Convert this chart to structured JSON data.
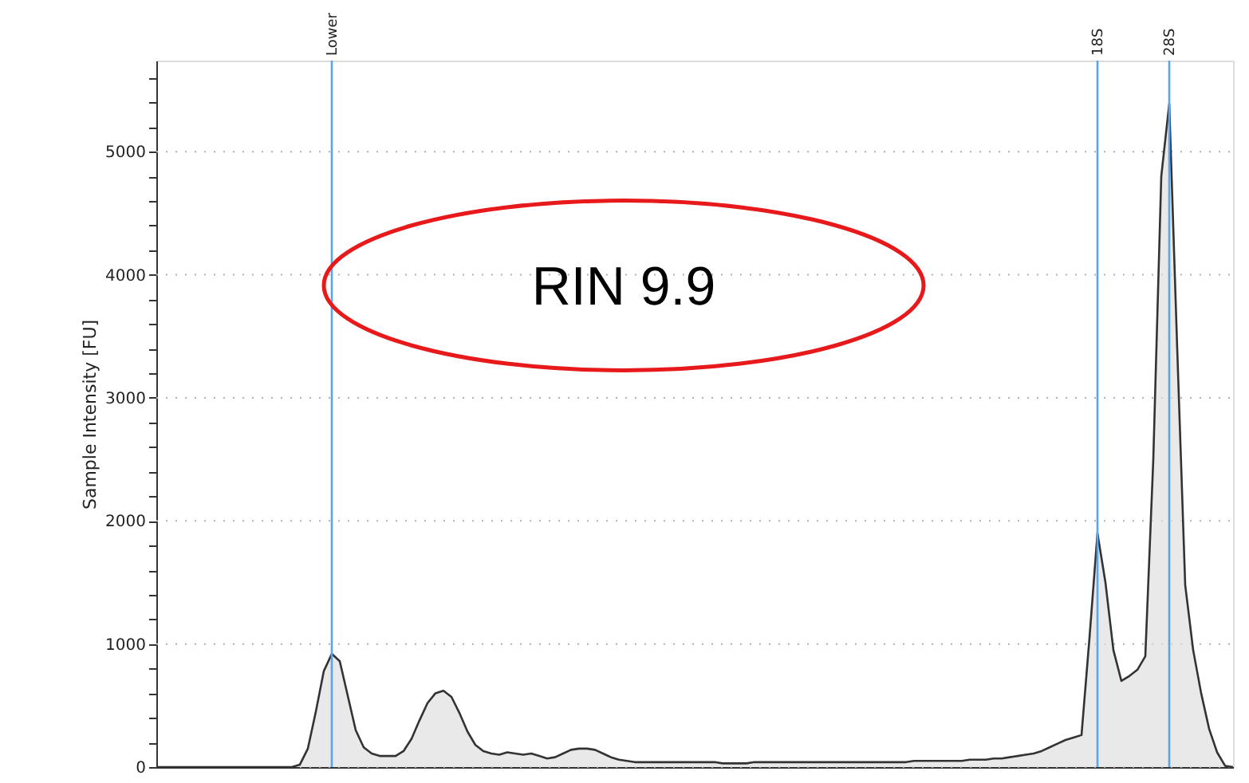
{
  "chart_data": {
    "type": "area",
    "ylabel": "Sample Intensity [FU]",
    "categories": [
      null,
      null,
      null,
      null,
      null,
      null,
      null,
      null,
      null,
      null,
      null,
      null,
      null,
      null,
      null,
      null,
      null,
      null,
      null,
      null,
      null,
      null,
      "Lower",
      null,
      null,
      null,
      null,
      null,
      null,
      null,
      null,
      null,
      null,
      null,
      null,
      null,
      null,
      null,
      null,
      null,
      null,
      null,
      null,
      null,
      null,
      null,
      null,
      null,
      null,
      null,
      null,
      null,
      null,
      null,
      null,
      null,
      null,
      null,
      null,
      null,
      null,
      null,
      null,
      null,
      null,
      null,
      null,
      null,
      null,
      null,
      null,
      null,
      null,
      null,
      null,
      null,
      null,
      null,
      null,
      null,
      null,
      null,
      null,
      null,
      null,
      null,
      null,
      null,
      null,
      null,
      null,
      null,
      null,
      null,
      null,
      null,
      null,
      null,
      null,
      null,
      null,
      null,
      null,
      null,
      null,
      null,
      null,
      null,
      null,
      null,
      null,
      null,
      null,
      null,
      null,
      null,
      null,
      null,
      "18S",
      null,
      null,
      null,
      null,
      null,
      null,
      null,
      null,
      "28S",
      null,
      null,
      null,
      null,
      null,
      null,
      null,
      null
    ],
    "series": [
      {
        "color": "#e0e0e0",
        "values": [
          0,
          0,
          0,
          0,
          0,
          0,
          0,
          0,
          0,
          0,
          0,
          0,
          0,
          0,
          0,
          0,
          0,
          0,
          20,
          150,
          450,
          780,
          920,
          860,
          580,
          300,
          160,
          110,
          90,
          90,
          90,
          130,
          230,
          380,
          520,
          600,
          620,
          570,
          440,
          290,
          180,
          130,
          110,
          100,
          120,
          110,
          100,
          110,
          90,
          70,
          80,
          110,
          140,
          150,
          150,
          140,
          110,
          80,
          60,
          50,
          40,
          40,
          40,
          40,
          40,
          40,
          40,
          40,
          40,
          40,
          40,
          30,
          30,
          30,
          30,
          40,
          40,
          40,
          40,
          40,
          40,
          40,
          40,
          40,
          40,
          40,
          40,
          40,
          40,
          40,
          40,
          40,
          40,
          40,
          40,
          50,
          50,
          50,
          50,
          50,
          50,
          50,
          60,
          60,
          60,
          70,
          70,
          80,
          90,
          100,
          110,
          130,
          160,
          190,
          220,
          240,
          260,
          1050,
          1900,
          1500,
          950,
          700,
          740,
          790,
          900,
          2500,
          4800,
          5390,
          3400,
          1480,
          950,
          600,
          310,
          120,
          10,
          0
        ]
      }
    ],
    "ylim": [
      0,
      5740
    ],
    "yticks": [
      0,
      {
        "value": 200,
        "label": null
      },
      {
        "value": 400,
        "label": null
      },
      {
        "value": 600,
        "label": null
      },
      {
        "value": 800,
        "label": null
      },
      1000,
      {
        "value": 1200,
        "label": null
      },
      {
        "value": 1400,
        "label": null
      },
      {
        "value": 1600,
        "label": null
      },
      {
        "value": 1800,
        "label": null
      },
      2000,
      {
        "value": 2200,
        "label": null
      },
      {
        "value": 2400,
        "label": null
      },
      {
        "value": 2600,
        "label": null
      },
      {
        "value": 2800,
        "label": null
      },
      3000,
      {
        "value": 3200,
        "label": null
      },
      {
        "value": 3400,
        "label": null
      },
      {
        "value": 3600,
        "label": null
      },
      {
        "value": 3800,
        "label": null
      },
      4000,
      {
        "value": 4200,
        "label": null
      },
      {
        "value": 4400,
        "label": null
      },
      {
        "value": 4600,
        "label": null
      },
      {
        "value": 4800,
        "label": null
      },
      5000,
      {
        "value": 5200,
        "label": null
      },
      {
        "value": 5400,
        "label": null
      },
      {
        "value": 5600,
        "label": null
      }
    ],
    "grid": "y",
    "annotations": [
      "RIN 9.9"
    ]
  }
}
